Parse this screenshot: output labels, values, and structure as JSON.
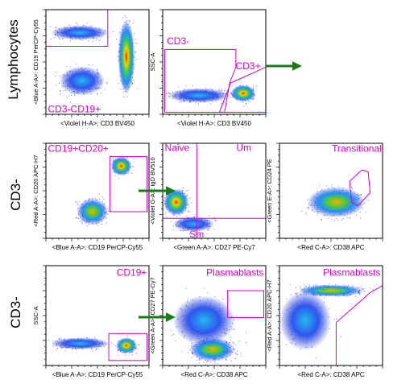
{
  "row_labels": [
    "Lymphocytes",
    "CD3-",
    "CD3-"
  ],
  "colors": {
    "gate": "#d400c8",
    "arrow": "#1a7a1a",
    "axis": "#000000"
  },
  "plots": [
    {
      "id": "p1",
      "ylabel": "<Blue A-A>: CD19 PerCP-Cy55",
      "xlabel": "<Violet H-A>: CD3  BV450",
      "gate_labels": [
        {
          "text": "CD3-CD19+",
          "anchor": "bottom-left"
        }
      ]
    },
    {
      "id": "p2",
      "ylabel": "SSC-A",
      "xlabel": "<Violet H-A>: CD3  BV450",
      "gate_labels": [
        {
          "text": "CD3-",
          "anchor": "top-left"
        },
        {
          "text": "CD3+",
          "anchor": "mid-right"
        }
      ]
    },
    {
      "id": "p3",
      "ylabel": "<Red A-A>: CD20 APC-H7",
      "xlabel": "<Blue A-A>: CD19  PerCP-Cy55",
      "gate_labels": [
        {
          "text": "CD19+CD20+",
          "anchor": "top-left"
        }
      ]
    },
    {
      "id": "p4",
      "ylabel": "<Violet G-A>: IgD BV510",
      "xlabel": "<Green A-A>: CD27  PE-Cy7",
      "gate_labels": [
        {
          "text": "Naive",
          "anchor": "top-left"
        },
        {
          "text": "Um",
          "anchor": "top-right"
        },
        {
          "text": "Sm",
          "anchor": "bottom-center"
        }
      ]
    },
    {
      "id": "p5",
      "ylabel": "<Green E-A>: CD24 PE",
      "xlabel": "<Red C-A>: CD38  APC",
      "gate_labels": [
        {
          "text": "Transitional",
          "anchor": "top-right"
        }
      ]
    },
    {
      "id": "p6",
      "ylabel": "SSC-A",
      "xlabel": "<Blue A-A>: CD19  PerCP-Cy55",
      "gate_labels": [
        {
          "text": "CD19+",
          "anchor": "top-right"
        }
      ]
    },
    {
      "id": "p7",
      "ylabel": "<Green A-A>: CD27 PE-Cy7",
      "xlabel": "<Red C-A>: CD38  APC",
      "gate_labels": [
        {
          "text": "Plasmablasts",
          "anchor": "top-right"
        }
      ]
    },
    {
      "id": "p8",
      "ylabel": "<Red A-A>: CD20 APC-H7",
      "xlabel": "<Red C-A>: CD38  APC",
      "gate_labels": [
        {
          "text": "Plasmablasts",
          "anchor": "top-right"
        }
      ]
    }
  ]
}
